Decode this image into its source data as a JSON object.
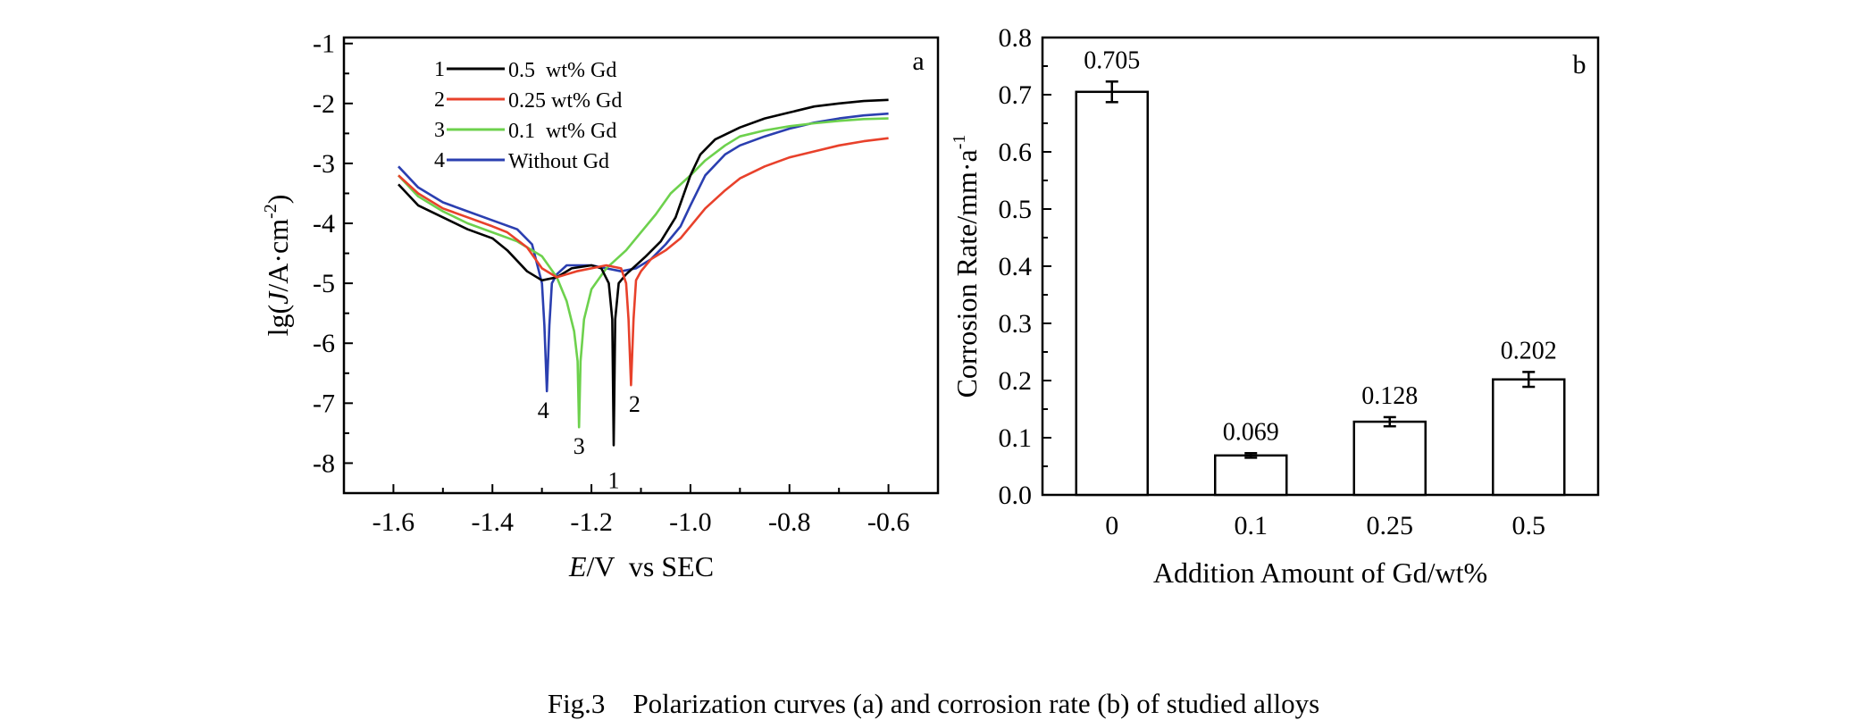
{
  "caption": {
    "label": "Fig.3",
    "text": "Polarization curves (a) and corrosion rate (b) of studied alloys"
  },
  "chart_data": [
    {
      "type": "line",
      "panel_label": "a",
      "xlabel_italic": "E",
      "xlabel_rest": "/V  vs SEC",
      "ylabel_prefix": "lg(",
      "ylabel_italic": "J",
      "ylabel_unit": "/A·cm",
      "ylabel_exp": "-2",
      "ylabel_suffix": ")",
      "xlim": [
        -1.7,
        -0.5
      ],
      "ylim": [
        -8.5,
        -0.9
      ],
      "xticks": [
        -1.6,
        -1.4,
        -1.2,
        -1.0,
        -0.8,
        -0.6
      ],
      "xtick_labels": [
        "-1.6",
        "-1.4",
        "-1.2",
        "-1.0",
        "-0.8",
        "-0.6"
      ],
      "yticks": [
        -1,
        -2,
        -3,
        -4,
        -5,
        -6,
        -7,
        -8
      ],
      "ytick_labels": [
        "-1",
        "-2",
        "-3",
        "-4",
        "-5",
        "-6",
        "-7",
        "-8"
      ],
      "legend_position": "top-left",
      "series": [
        {
          "id": "1",
          "name": "0.5  wt% Gd",
          "color": "#000000",
          "corrosion_potential": -1.155,
          "x": [
            -1.59,
            -1.55,
            -1.5,
            -1.45,
            -1.4,
            -1.37,
            -1.33,
            -1.3,
            -1.27,
            -1.24,
            -1.2,
            -1.18,
            -1.165,
            -1.158,
            -1.155,
            -1.152,
            -1.145,
            -1.13,
            -1.11,
            -1.09,
            -1.06,
            -1.03,
            -1.0,
            -0.98,
            -0.95,
            -0.9,
            -0.85,
            -0.8,
            -0.75,
            -0.7,
            -0.65,
            -0.6
          ],
          "y": [
            -3.35,
            -3.7,
            -3.9,
            -4.1,
            -4.25,
            -4.45,
            -4.8,
            -4.95,
            -4.9,
            -4.75,
            -4.7,
            -4.75,
            -5.0,
            -5.6,
            -7.7,
            -5.6,
            -5.0,
            -4.85,
            -4.7,
            -4.55,
            -4.3,
            -3.9,
            -3.2,
            -2.85,
            -2.6,
            -2.4,
            -2.25,
            -2.15,
            -2.05,
            -2.0,
            -1.96,
            -1.94
          ]
        },
        {
          "id": "2",
          "name": "0.25 wt% Gd",
          "color": "#e8412b",
          "corrosion_potential": -1.12,
          "x": [
            -1.59,
            -1.55,
            -1.5,
            -1.45,
            -1.4,
            -1.37,
            -1.33,
            -1.3,
            -1.27,
            -1.23,
            -1.2,
            -1.17,
            -1.14,
            -1.13,
            -1.125,
            -1.12,
            -1.115,
            -1.11,
            -1.1,
            -1.08,
            -1.05,
            -1.02,
            -1.0,
            -0.97,
            -0.93,
            -0.9,
            -0.85,
            -0.8,
            -0.75,
            -0.7,
            -0.65,
            -0.6
          ],
          "y": [
            -3.2,
            -3.5,
            -3.75,
            -3.9,
            -4.05,
            -4.15,
            -4.4,
            -4.75,
            -4.9,
            -4.8,
            -4.75,
            -4.7,
            -4.75,
            -5.0,
            -5.6,
            -6.7,
            -5.6,
            -4.95,
            -4.8,
            -4.6,
            -4.45,
            -4.25,
            -4.05,
            -3.75,
            -3.45,
            -3.25,
            -3.05,
            -2.9,
            -2.8,
            -2.7,
            -2.63,
            -2.58
          ]
        },
        {
          "id": "3",
          "name": "0.1  wt% Gd",
          "color": "#6dd14d",
          "corrosion_potential": -1.225,
          "x": [
            -1.59,
            -1.55,
            -1.5,
            -1.45,
            -1.4,
            -1.35,
            -1.3,
            -1.27,
            -1.25,
            -1.235,
            -1.228,
            -1.225,
            -1.222,
            -1.215,
            -1.2,
            -1.17,
            -1.13,
            -1.1,
            -1.07,
            -1.04,
            -1.0,
            -0.97,
            -0.93,
            -0.9,
            -0.85,
            -0.8,
            -0.75,
            -0.7,
            -0.65,
            -0.6
          ],
          "y": [
            -3.2,
            -3.55,
            -3.8,
            -4.0,
            -4.15,
            -4.3,
            -4.55,
            -4.9,
            -5.3,
            -5.8,
            -6.3,
            -7.4,
            -6.3,
            -5.6,
            -5.1,
            -4.75,
            -4.45,
            -4.15,
            -3.85,
            -3.5,
            -3.2,
            -2.95,
            -2.7,
            -2.55,
            -2.45,
            -2.38,
            -2.33,
            -2.29,
            -2.26,
            -2.25
          ]
        },
        {
          "id": "4",
          "name": "Without Gd",
          "color": "#2b3fb0",
          "corrosion_potential": -1.29,
          "x": [
            -1.59,
            -1.55,
            -1.5,
            -1.45,
            -1.4,
            -1.35,
            -1.32,
            -1.3,
            -1.295,
            -1.29,
            -1.285,
            -1.28,
            -1.27,
            -1.25,
            -1.22,
            -1.2,
            -1.17,
            -1.14,
            -1.11,
            -1.08,
            -1.05,
            -1.02,
            -1.0,
            -0.97,
            -0.93,
            -0.9,
            -0.85,
            -0.8,
            -0.75,
            -0.7,
            -0.65,
            -0.6
          ],
          "y": [
            -3.05,
            -3.4,
            -3.65,
            -3.8,
            -3.95,
            -4.1,
            -4.35,
            -5.0,
            -5.7,
            -6.8,
            -5.7,
            -5.0,
            -4.85,
            -4.7,
            -4.7,
            -4.7,
            -4.75,
            -4.8,
            -4.75,
            -4.6,
            -4.35,
            -4.05,
            -3.7,
            -3.2,
            -2.85,
            -2.7,
            -2.55,
            -2.42,
            -2.32,
            -2.25,
            -2.2,
            -2.17
          ]
        }
      ]
    },
    {
      "type": "bar",
      "panel_label": "b",
      "categories": [
        "0",
        "0.1",
        "0.25",
        "0.5"
      ],
      "values": [
        0.705,
        0.069,
        0.128,
        0.202
      ],
      "value_labels": [
        "0.705",
        "0.069",
        "0.128",
        "0.202"
      ],
      "errors": [
        0.018,
        0.004,
        0.008,
        0.013
      ],
      "xlabel": "Addition Amount of Gd/wt%",
      "ylabel": "Corrosion Rate/mm·a",
      "ylabel_exp": "-1",
      "ylim": [
        0,
        0.8
      ],
      "yticks": [
        0.0,
        0.1,
        0.2,
        0.3,
        0.4,
        0.5,
        0.6,
        0.7,
        0.8
      ],
      "ytick_labels": [
        "0.0",
        "0.1",
        "0.2",
        "0.3",
        "0.4",
        "0.5",
        "0.6",
        "0.7",
        "0.8"
      ],
      "bar_fill": "#ffffff",
      "bar_stroke": "#000000"
    }
  ]
}
